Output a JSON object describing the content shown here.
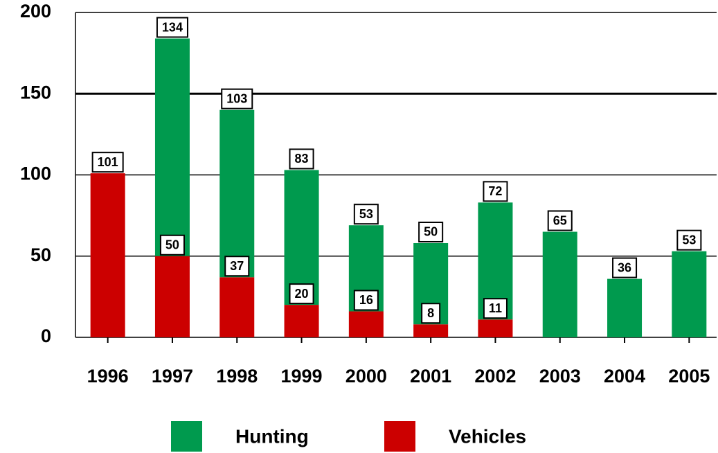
{
  "chart_data": {
    "type": "stacked-bar",
    "categories": [
      "1996",
      "1997",
      "1998",
      "1999",
      "2000",
      "2001",
      "2002",
      "2003",
      "2004",
      "2005"
    ],
    "series": [
      {
        "name": "Vehicles",
        "color": "#cc0000",
        "values": [
          101,
          50,
          37,
          20,
          16,
          8,
          11,
          null,
          null,
          null
        ]
      },
      {
        "name": "Hunting",
        "color": "#009a4e",
        "values": [
          null,
          134,
          103,
          83,
          53,
          50,
          72,
          65,
          36,
          53
        ]
      }
    ],
    "legend_order": [
      "Hunting",
      "Vehicles"
    ],
    "ylim": [
      0,
      200
    ],
    "yticks": [
      0,
      50,
      100,
      150,
      200
    ],
    "grid": true
  }
}
